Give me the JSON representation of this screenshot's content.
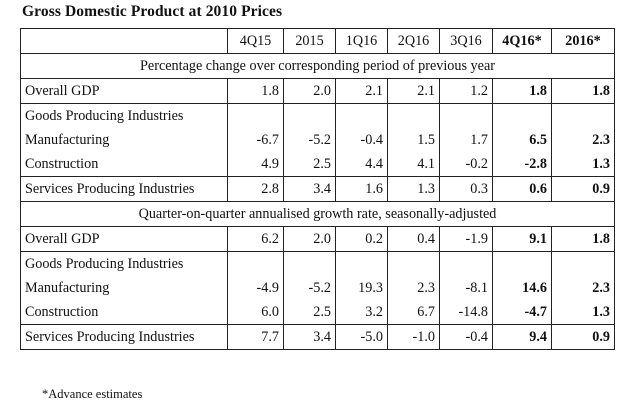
{
  "title": "Gross Domestic Product at 2010 Prices",
  "columns": [
    "4Q15",
    "2015",
    "1Q16",
    "2Q16",
    "3Q16",
    "4Q16*",
    "2016*"
  ],
  "section1": {
    "heading": "Percentage change over corresponding period of previous year",
    "rows": [
      {
        "label": "Overall GDP",
        "values": [
          "1.8",
          "2.0",
          "2.1",
          "2.1",
          "1.2",
          "1.8",
          "1.8"
        ]
      },
      {
        "label": "Goods Producing Industries",
        "values": []
      },
      {
        "label": "Manufacturing",
        "values": [
          "-6.7",
          "-5.2",
          "-0.4",
          "1.5",
          "1.7",
          "6.5",
          "2.3"
        ]
      },
      {
        "label": "Construction",
        "values": [
          "4.9",
          "2.5",
          "4.4",
          "4.1",
          "-0.2",
          "-2.8",
          "1.3"
        ]
      },
      {
        "label": "Services Producing Industries",
        "values": [
          "2.8",
          "3.4",
          "1.6",
          "1.3",
          "0.3",
          "0.6",
          "0.9"
        ]
      }
    ]
  },
  "section2": {
    "heading": "Quarter-on-quarter annualised growth rate, seasonally-adjusted",
    "rows": [
      {
        "label": "Overall GDP",
        "values": [
          "6.2",
          "2.0",
          "0.2",
          "0.4",
          "-1.9",
          "9.1",
          "1.8"
        ]
      },
      {
        "label": "Goods Producing Industries",
        "values": []
      },
      {
        "label": "Manufacturing",
        "values": [
          "-4.9",
          "-5.2",
          "19.3",
          "2.3",
          "-8.1",
          "14.6",
          "2.3"
        ]
      },
      {
        "label": "Construction",
        "values": [
          "6.0",
          "2.5",
          "3.2",
          "6.7",
          "-14.8",
          "-4.7",
          "1.3"
        ]
      },
      {
        "label": "Services Producing Industries",
        "values": [
          "7.7",
          "3.4",
          "-5.0",
          "-1.0",
          "-0.4",
          "9.4",
          "0.9"
        ]
      }
    ]
  },
  "footnote": "*Advance estimates"
}
